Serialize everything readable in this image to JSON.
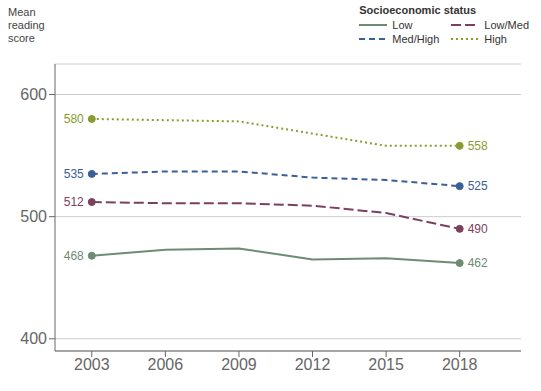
{
  "chart_data": {
    "type": "line",
    "x": [
      2003,
      2006,
      2009,
      2012,
      2015,
      2018
    ],
    "xlim": [
      2001.5,
      2020.5
    ],
    "xticks": [
      2003,
      2006,
      2009,
      2012,
      2015,
      2018
    ],
    "ylim": [
      390,
      625
    ],
    "yticks": [
      400,
      500,
      600
    ],
    "y_label": "Mean\nreading\nscore",
    "legend_title": "Socioeconomic status",
    "legend": "upper right",
    "grid": true,
    "series": [
      {
        "name": "Low",
        "color": "#6e8b74",
        "line_style": "solid",
        "marker": "circle",
        "values": [
          468,
          473,
          474,
          465,
          466,
          462
        ],
        "value_labels": [
          "468",
          null,
          null,
          null,
          null,
          "462"
        ]
      },
      {
        "name": "Low/Med",
        "color": "#7b4060",
        "line_style": "longdash",
        "marker": "circle",
        "values": [
          512,
          511,
          511,
          509,
          503,
          490
        ],
        "value_labels": [
          "512",
          null,
          null,
          null,
          null,
          "490"
        ]
      },
      {
        "name": "Med/High",
        "color": "#3a6099",
        "line_style": "dashed",
        "marker": "circle",
        "values": [
          535,
          537,
          537,
          532,
          530,
          525
        ],
        "value_labels": [
          "535",
          null,
          null,
          null,
          null,
          "525"
        ]
      },
      {
        "name": "High",
        "color": "#8b9a2e",
        "line_style": "dotted",
        "marker": "circle",
        "values": [
          580,
          579,
          578,
          568,
          558,
          558
        ],
        "value_labels": [
          "580",
          null,
          null,
          null,
          null,
          "558"
        ]
      }
    ]
  }
}
